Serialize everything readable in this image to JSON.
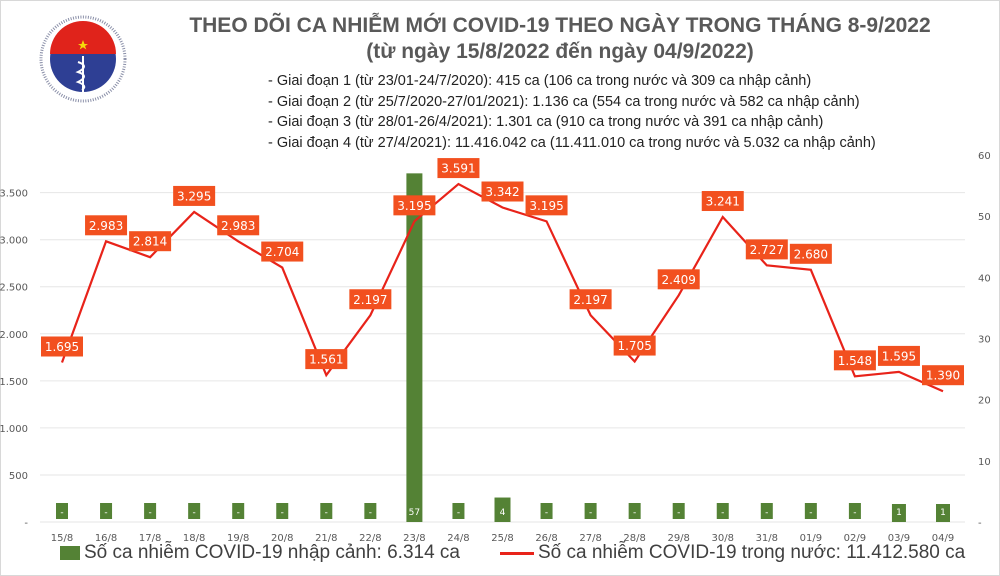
{
  "header": {
    "logo_text": "BỘ Y TẾ MINISTRY OF HEALTH",
    "title": "THEO DÕI CA NHIỄM MỚI COVID-19 THEO NGÀY TRONG THÁNG 8-9/2022",
    "subtitle": "(từ ngày 15/8/2022 đến ngày 04/9/2022)",
    "phases": [
      "- Giai đoạn 1 (từ 23/01-24/7/2020): 415 ca (106 ca trong nước và 309 ca nhập cảnh)",
      "- Giai đoạn 2 (từ 25/7/2020-27/01/2021): 1.136 ca (554 ca trong nước và 582 ca nhập cảnh)",
      "- Giai đoạn 3 (từ 28/01-26/4/2021): 1.301 ca (910 ca trong nước và 391 ca nhập cảnh)",
      "- Giai đoạn 4 (từ 27/4/2021): 11.416.042 ca (11.411.010 ca trong nước và 5.032 ca nhập cảnh)"
    ]
  },
  "colors": {
    "line": "#e8231a",
    "label_bg": "#f2501f",
    "bar": "#548235"
  },
  "chart_data": {
    "type": "bar+line",
    "categories": [
      "15/8",
      "16/8",
      "17/8",
      "18/8",
      "19/8",
      "20/8",
      "21/8",
      "22/8",
      "23/8",
      "24/8",
      "25/8",
      "26/8",
      "27/8",
      "28/8",
      "29/8",
      "30/8",
      "31/8",
      "01/9",
      "02/9",
      "03/9",
      "04/9"
    ],
    "series": [
      {
        "name": "Số ca nhiễm COVID-19 nhập cảnh: 6.314 ca",
        "type": "bar",
        "axis": "right",
        "values": [
          0,
          0,
          0,
          0,
          0,
          0,
          0,
          0,
          57,
          0,
          4,
          0,
          0,
          0,
          0,
          0,
          0,
          0,
          0,
          1,
          1
        ],
        "labels": [
          "-",
          "-",
          "-",
          "-",
          "-",
          "-",
          "-",
          "-",
          "57",
          "-",
          "4",
          "-",
          "-",
          "-",
          "-",
          "-",
          "-",
          "-",
          "-",
          "1",
          "1"
        ]
      },
      {
        "name": "Số ca nhiễm COVID-19 trong nước: 11.412.580 ca",
        "type": "line",
        "axis": "left",
        "values": [
          1695,
          2983,
          2814,
          3295,
          2983,
          2704,
          1561,
          2197,
          3195,
          3591,
          3342,
          3195,
          2197,
          1705,
          2409,
          3241,
          2727,
          2680,
          1548,
          1595,
          1390
        ],
        "labels": [
          "1.695",
          "2.983",
          "2.814",
          "3.295",
          "2.983",
          "2.704",
          "1.561",
          "2.197",
          "3.195",
          "3.591",
          "3.342",
          "3.195",
          "2.197",
          "1.705",
          "2.409",
          "3.241",
          "2.727",
          "2.680",
          "1.548",
          "1.595",
          "1.390"
        ]
      }
    ],
    "left_axis": {
      "ylim": [
        0,
        3900
      ],
      "ticks": [
        0,
        500,
        1000,
        1500,
        2000,
        2500,
        3000,
        3500
      ],
      "tick_labels": [
        "-",
        "500",
        "1.000",
        "1.500",
        "2.000",
        "2.500",
        "3.000",
        "3.500"
      ]
    },
    "right_axis": {
      "ylim": [
        0,
        60
      ],
      "ticks": [
        0,
        10,
        20,
        30,
        40,
        50,
        60
      ],
      "tick_labels": [
        "-",
        "10",
        "20",
        "30",
        "40",
        "50",
        "60"
      ]
    },
    "grid": true,
    "legend": "bottom"
  }
}
